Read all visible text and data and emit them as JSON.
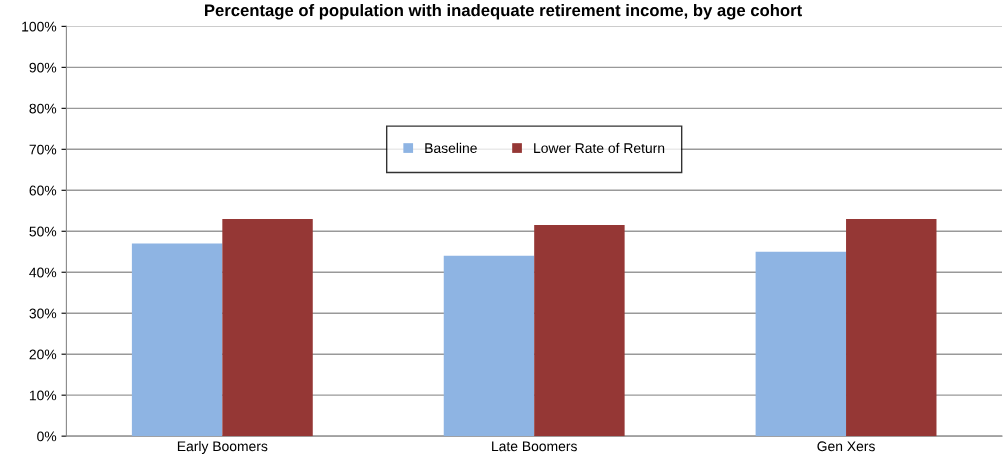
{
  "chart_data": {
    "type": "bar",
    "title": "Percentage of population with inadequate retirement income, by age cohort",
    "categories": [
      "Early Boomers",
      "Late Boomers",
      "Gen Xers"
    ],
    "series": [
      {
        "name": "Baseline",
        "color": "#8eb4e3",
        "values": [
          47,
          44,
          45
        ]
      },
      {
        "name": "Lower Rate of Return",
        "color": "#953735",
        "values": [
          53,
          51.5,
          53
        ]
      }
    ],
    "ylim": [
      0,
      100
    ],
    "yticks": [
      {
        "value": 0,
        "label": "0%"
      },
      {
        "value": 10,
        "label": "10%"
      },
      {
        "value": 20,
        "label": "20%"
      },
      {
        "value": 30,
        "label": "30%"
      },
      {
        "value": 40,
        "label": "40%"
      },
      {
        "value": 50,
        "label": "50%"
      },
      {
        "value": 60,
        "label": "60%"
      },
      {
        "value": 70,
        "label": "70%"
      },
      {
        "value": 80,
        "label": "80%"
      },
      {
        "value": 90,
        "label": "90%"
      },
      {
        "value": 100,
        "label": "100%"
      }
    ],
    "grid": "y",
    "legend": "center"
  }
}
